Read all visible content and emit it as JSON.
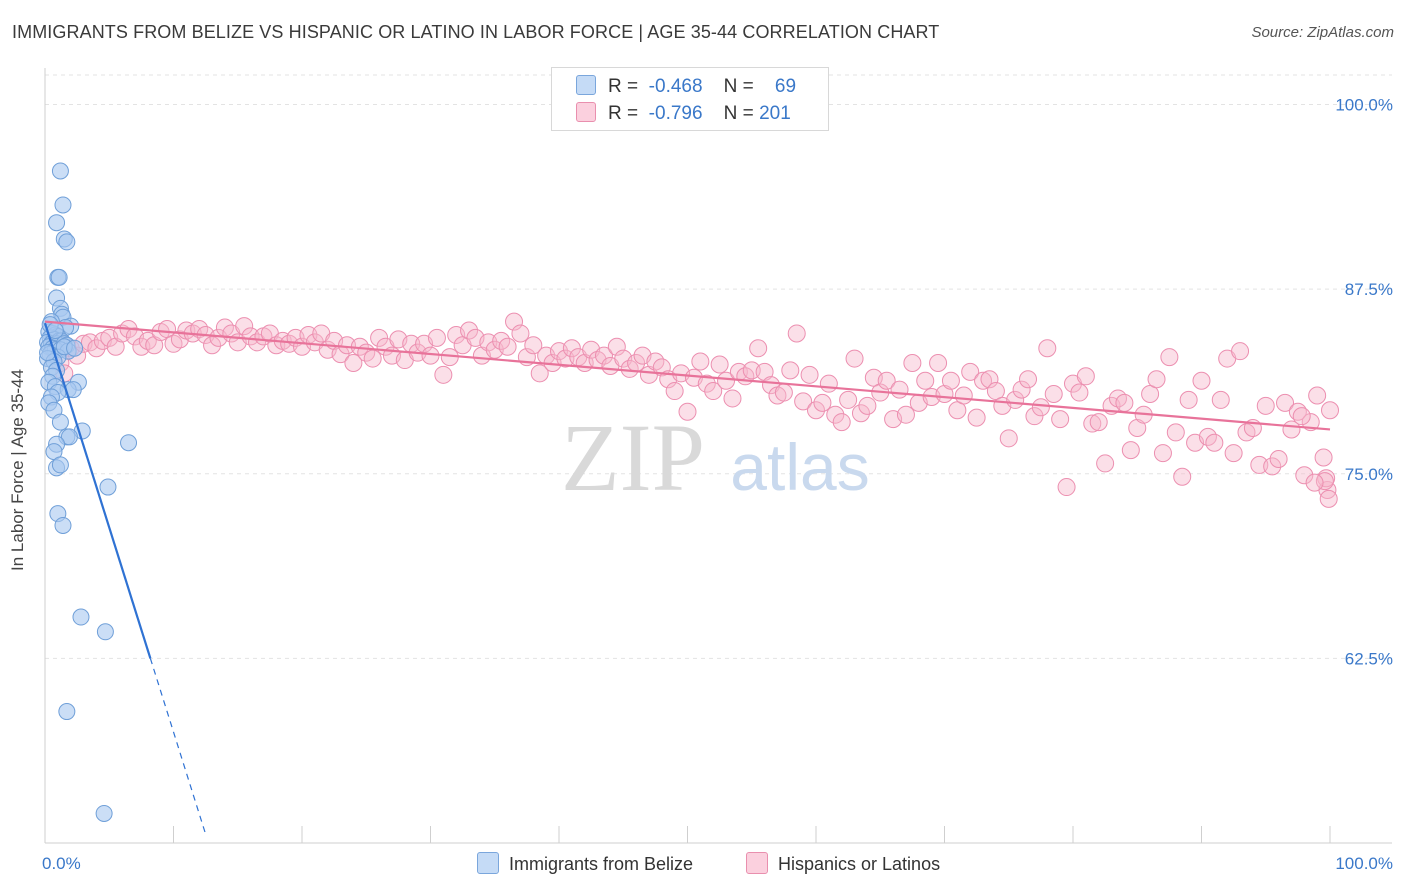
{
  "title": "IMMIGRANTS FROM BELIZE VS HISPANIC OR LATINO IN LABOR FORCE | AGE 35-44 CORRELATION CHART",
  "source": "Source: ZipAtlas.com",
  "watermark": {
    "zip": "ZIP",
    "atlas": "atlas"
  },
  "legend": {
    "rows": [
      {
        "r_label": "R =",
        "r_value": "-0.468",
        "n_label": "N =",
        "n_value": "69",
        "color": "#a9c8f0"
      },
      {
        "r_label": "R =",
        "r_value": "-0.796",
        "n_label": "N =",
        "n_value": "201",
        "color": "#f7b8cc"
      }
    ]
  },
  "bottom_legend": [
    {
      "label": "Immigrants from Belize",
      "color": "#a9c8f0"
    },
    {
      "label": "Hispanics or Latinos",
      "color": "#f7b8cc"
    }
  ],
  "chart_data": {
    "type": "scatter",
    "title": "IMMIGRANTS FROM BELIZE VS HISPANIC OR LATINO IN LABOR FORCE | AGE 35-44 CORRELATION CHART",
    "xlabel": "",
    "ylabel": "In Labor Force | Age 35-44",
    "xlim": [
      0,
      100
    ],
    "ylim": [
      50,
      102
    ],
    "x_tick_labels": [
      "0.0%",
      "100.0%"
    ],
    "y_ticks": [
      62.5,
      75.0,
      87.5,
      100.0
    ],
    "y_tick_labels": [
      "62.5%",
      "75.0%",
      "87.5%",
      "100.0%"
    ],
    "grid": true,
    "legend_position": "top-center",
    "series": [
      {
        "name": "Immigrants from Belize",
        "color": "#3b7dd8",
        "fill": "#a9c8f0",
        "r": -0.468,
        "n": 69,
        "trend": {
          "x0": 0.0,
          "y0": 85.2,
          "x1": 8.2,
          "y1": 62.5,
          "dashed_to_x": 12.5,
          "dashed_to_y": 50.6
        },
        "points": [
          [
            1.2,
            95.5
          ],
          [
            1.4,
            93.2
          ],
          [
            0.9,
            92.0
          ],
          [
            1.5,
            90.9
          ],
          [
            1.7,
            90.7
          ],
          [
            1.0,
            88.3
          ],
          [
            1.1,
            88.3
          ],
          [
            0.9,
            86.9
          ],
          [
            1.2,
            86.2
          ],
          [
            1.3,
            85.8
          ],
          [
            1.4,
            85.6
          ],
          [
            0.5,
            85.3
          ],
          [
            2.0,
            85.0
          ],
          [
            1.6,
            84.9
          ],
          [
            0.3,
            84.6
          ],
          [
            0.6,
            84.5
          ],
          [
            0.8,
            84.4
          ],
          [
            1.0,
            84.3
          ],
          [
            0.4,
            84.2
          ],
          [
            0.7,
            84.1
          ],
          [
            1.1,
            84.0
          ],
          [
            1.3,
            84.0
          ],
          [
            0.2,
            83.9
          ],
          [
            0.5,
            83.8
          ],
          [
            0.9,
            83.8
          ],
          [
            1.5,
            83.8
          ],
          [
            1.7,
            83.7
          ],
          [
            0.3,
            83.6
          ],
          [
            0.6,
            83.5
          ],
          [
            0.8,
            83.4
          ],
          [
            1.2,
            83.4
          ],
          [
            1.8,
            83.3
          ],
          [
            0.4,
            83.1
          ],
          [
            1.0,
            82.9
          ],
          [
            0.2,
            82.8
          ],
          [
            0.7,
            82.6
          ],
          [
            0.5,
            82.2
          ],
          [
            0.9,
            82.0
          ],
          [
            0.6,
            81.6
          ],
          [
            0.3,
            81.2
          ],
          [
            2.6,
            81.2
          ],
          [
            0.8,
            80.9
          ],
          [
            1.8,
            80.7
          ],
          [
            2.2,
            80.7
          ],
          [
            1.0,
            80.5
          ],
          [
            0.5,
            80.2
          ],
          [
            0.3,
            79.8
          ],
          [
            0.7,
            79.3
          ],
          [
            1.2,
            78.5
          ],
          [
            2.9,
            77.9
          ],
          [
            1.7,
            77.5
          ],
          [
            1.9,
            77.5
          ],
          [
            0.9,
            77.0
          ],
          [
            6.5,
            77.1
          ],
          [
            0.7,
            76.5
          ],
          [
            0.9,
            75.4
          ],
          [
            1.2,
            75.6
          ],
          [
            4.9,
            74.1
          ],
          [
            1.0,
            72.3
          ],
          [
            1.4,
            71.5
          ],
          [
            2.8,
            65.3
          ],
          [
            4.7,
            64.3
          ],
          [
            1.7,
            58.9
          ],
          [
            4.6,
            52.0
          ],
          [
            1.5,
            83.6
          ],
          [
            0.4,
            85.1
          ],
          [
            2.3,
            83.5
          ],
          [
            0.8,
            84.7
          ],
          [
            0.2,
            83.2
          ]
        ]
      },
      {
        "name": "Hispanics or Latinos",
        "color": "#e8739a",
        "fill": "#f7b8cc",
        "r": -0.796,
        "n": 201,
        "trend": {
          "x0": 0.0,
          "y0": 85.3,
          "x1": 100.0,
          "y1": 78.0
        },
        "points": [
          [
            0.8,
            83.2
          ],
          [
            1.2,
            82.5
          ],
          [
            1.5,
            81.8
          ],
          [
            2.0,
            83.5
          ],
          [
            2.5,
            83.0
          ],
          [
            3.0,
            83.8
          ],
          [
            3.5,
            83.9
          ],
          [
            4.0,
            83.5
          ],
          [
            4.5,
            84.0
          ],
          [
            5.0,
            84.2
          ],
          [
            5.5,
            83.6
          ],
          [
            6.0,
            84.5
          ],
          [
            6.5,
            84.8
          ],
          [
            7.0,
            84.3
          ],
          [
            7.5,
            83.6
          ],
          [
            8.0,
            84.0
          ],
          [
            8.5,
            83.7
          ],
          [
            9.0,
            84.6
          ],
          [
            9.5,
            84.8
          ],
          [
            10.0,
            83.8
          ],
          [
            10.5,
            84.1
          ],
          [
            11.0,
            84.7
          ],
          [
            11.5,
            84.5
          ],
          [
            12.0,
            84.8
          ],
          [
            12.5,
            84.4
          ],
          [
            13.0,
            83.7
          ],
          [
            13.5,
            84.2
          ],
          [
            14.0,
            84.9
          ],
          [
            14.5,
            84.5
          ],
          [
            15.0,
            83.9
          ],
          [
            15.5,
            85.0
          ],
          [
            16.0,
            84.3
          ],
          [
            16.5,
            83.9
          ],
          [
            17.0,
            84.3
          ],
          [
            17.5,
            84.5
          ],
          [
            18.0,
            83.7
          ],
          [
            18.5,
            84.0
          ],
          [
            19.0,
            83.8
          ],
          [
            19.5,
            84.2
          ],
          [
            20.0,
            83.6
          ],
          [
            20.5,
            84.4
          ],
          [
            21.0,
            83.9
          ],
          [
            21.5,
            84.5
          ],
          [
            22.0,
            83.4
          ],
          [
            22.5,
            84.0
          ],
          [
            23.0,
            83.1
          ],
          [
            23.5,
            83.7
          ],
          [
            24.0,
            82.5
          ],
          [
            24.5,
            83.6
          ],
          [
            25.0,
            83.2
          ],
          [
            25.5,
            82.8
          ],
          [
            26.0,
            84.2
          ],
          [
            26.5,
            83.6
          ],
          [
            27.0,
            83.0
          ],
          [
            27.5,
            84.1
          ],
          [
            28.0,
            82.7
          ],
          [
            28.5,
            83.8
          ],
          [
            29.0,
            83.2
          ],
          [
            29.5,
            83.8
          ],
          [
            30.0,
            83.0
          ],
          [
            30.5,
            84.2
          ],
          [
            31.0,
            81.7
          ],
          [
            31.5,
            82.9
          ],
          [
            32.0,
            84.4
          ],
          [
            32.5,
            83.7
          ],
          [
            33.0,
            84.7
          ],
          [
            33.5,
            84.2
          ],
          [
            34.0,
            83.0
          ],
          [
            34.5,
            83.9
          ],
          [
            35.0,
            83.4
          ],
          [
            35.5,
            84.0
          ],
          [
            36.0,
            83.6
          ],
          [
            36.5,
            85.3
          ],
          [
            37.0,
            84.5
          ],
          [
            37.5,
            82.9
          ],
          [
            38.0,
            83.7
          ],
          [
            38.5,
            81.8
          ],
          [
            39.0,
            83.0
          ],
          [
            39.5,
            82.5
          ],
          [
            40.0,
            83.3
          ],
          [
            40.5,
            82.8
          ],
          [
            41.0,
            83.5
          ],
          [
            41.5,
            82.9
          ],
          [
            42.0,
            82.5
          ],
          [
            42.5,
            83.4
          ],
          [
            43.0,
            82.7
          ],
          [
            43.5,
            83.0
          ],
          [
            44.0,
            82.3
          ],
          [
            44.5,
            83.6
          ],
          [
            45.0,
            82.8
          ],
          [
            45.5,
            82.1
          ],
          [
            46.0,
            82.5
          ],
          [
            46.5,
            83.0
          ],
          [
            47.0,
            81.7
          ],
          [
            47.5,
            82.6
          ],
          [
            48.0,
            82.2
          ],
          [
            48.5,
            81.4
          ],
          [
            49.0,
            80.6
          ],
          [
            49.5,
            81.8
          ],
          [
            50.0,
            79.2
          ],
          [
            50.5,
            81.5
          ],
          [
            51.0,
            82.6
          ],
          [
            51.5,
            81.1
          ],
          [
            52.0,
            80.6
          ],
          [
            52.5,
            82.4
          ],
          [
            53.0,
            81.3
          ],
          [
            53.5,
            80.1
          ],
          [
            54.0,
            81.9
          ],
          [
            54.5,
            81.6
          ],
          [
            55.0,
            82.0
          ],
          [
            55.5,
            83.5
          ],
          [
            56.0,
            81.9
          ],
          [
            56.5,
            81.0
          ],
          [
            57.0,
            80.3
          ],
          [
            57.5,
            80.5
          ],
          [
            58.0,
            82.0
          ],
          [
            58.5,
            84.5
          ],
          [
            59.0,
            79.9
          ],
          [
            59.5,
            81.7
          ],
          [
            60.0,
            79.3
          ],
          [
            60.5,
            79.8
          ],
          [
            61.0,
            81.1
          ],
          [
            61.5,
            79.0
          ],
          [
            62.0,
            78.5
          ],
          [
            62.5,
            80.0
          ],
          [
            63.0,
            82.8
          ],
          [
            63.5,
            79.1
          ],
          [
            64.0,
            79.6
          ],
          [
            64.5,
            81.5
          ],
          [
            65.0,
            80.5
          ],
          [
            65.5,
            81.3
          ],
          [
            66.0,
            78.7
          ],
          [
            66.5,
            80.7
          ],
          [
            67.0,
            79.0
          ],
          [
            67.5,
            82.5
          ],
          [
            68.0,
            79.8
          ],
          [
            68.5,
            81.3
          ],
          [
            69.0,
            80.2
          ],
          [
            69.5,
            82.5
          ],
          [
            70.0,
            80.4
          ],
          [
            70.5,
            81.3
          ],
          [
            71.0,
            79.3
          ],
          [
            71.5,
            80.3
          ],
          [
            72.0,
            81.9
          ],
          [
            72.5,
            78.8
          ],
          [
            73.0,
            81.3
          ],
          [
            73.5,
            81.4
          ],
          [
            74.0,
            80.6
          ],
          [
            74.5,
            79.6
          ],
          [
            75.0,
            77.4
          ],
          [
            75.5,
            80.0
          ],
          [
            76.0,
            80.7
          ],
          [
            76.5,
            81.4
          ],
          [
            77.0,
            78.9
          ],
          [
            77.5,
            79.5
          ],
          [
            78.0,
            83.5
          ],
          [
            78.5,
            80.4
          ],
          [
            79.0,
            78.7
          ],
          [
            79.5,
            74.1
          ],
          [
            80.0,
            81.1
          ],
          [
            80.5,
            80.5
          ],
          [
            81.0,
            81.6
          ],
          [
            81.5,
            78.4
          ],
          [
            82.0,
            78.5
          ],
          [
            82.5,
            75.7
          ],
          [
            83.0,
            79.6
          ],
          [
            83.5,
            80.1
          ],
          [
            84.0,
            79.8
          ],
          [
            84.5,
            76.6
          ],
          [
            85.0,
            78.1
          ],
          [
            85.5,
            79.0
          ],
          [
            86.0,
            80.4
          ],
          [
            86.5,
            81.4
          ],
          [
            87.0,
            76.4
          ],
          [
            87.5,
            82.9
          ],
          [
            88.0,
            77.8
          ],
          [
            88.5,
            74.8
          ],
          [
            89.0,
            80.0
          ],
          [
            89.5,
            77.1
          ],
          [
            90.0,
            81.3
          ],
          [
            90.5,
            77.5
          ],
          [
            91.0,
            77.1
          ],
          [
            91.5,
            80.0
          ],
          [
            92.0,
            82.8
          ],
          [
            92.5,
            76.4
          ],
          [
            93.0,
            83.3
          ],
          [
            93.5,
            77.8
          ],
          [
            94.0,
            78.1
          ],
          [
            94.5,
            75.6
          ],
          [
            95.0,
            79.6
          ],
          [
            95.5,
            75.5
          ],
          [
            96.0,
            76.0
          ],
          [
            96.5,
            79.8
          ],
          [
            97.0,
            78.0
          ],
          [
            97.5,
            79.2
          ],
          [
            98.0,
            74.9
          ],
          [
            98.5,
            78.5
          ],
          [
            99.0,
            80.3
          ],
          [
            99.5,
            76.1
          ],
          [
            100.0,
            79.3
          ],
          [
            99.8,
            73.9
          ],
          [
            99.9,
            73.3
          ],
          [
            99.7,
            74.7
          ],
          [
            99.6,
            74.5
          ],
          [
            98.8,
            74.4
          ],
          [
            97.8,
            78.9
          ]
        ]
      }
    ]
  }
}
